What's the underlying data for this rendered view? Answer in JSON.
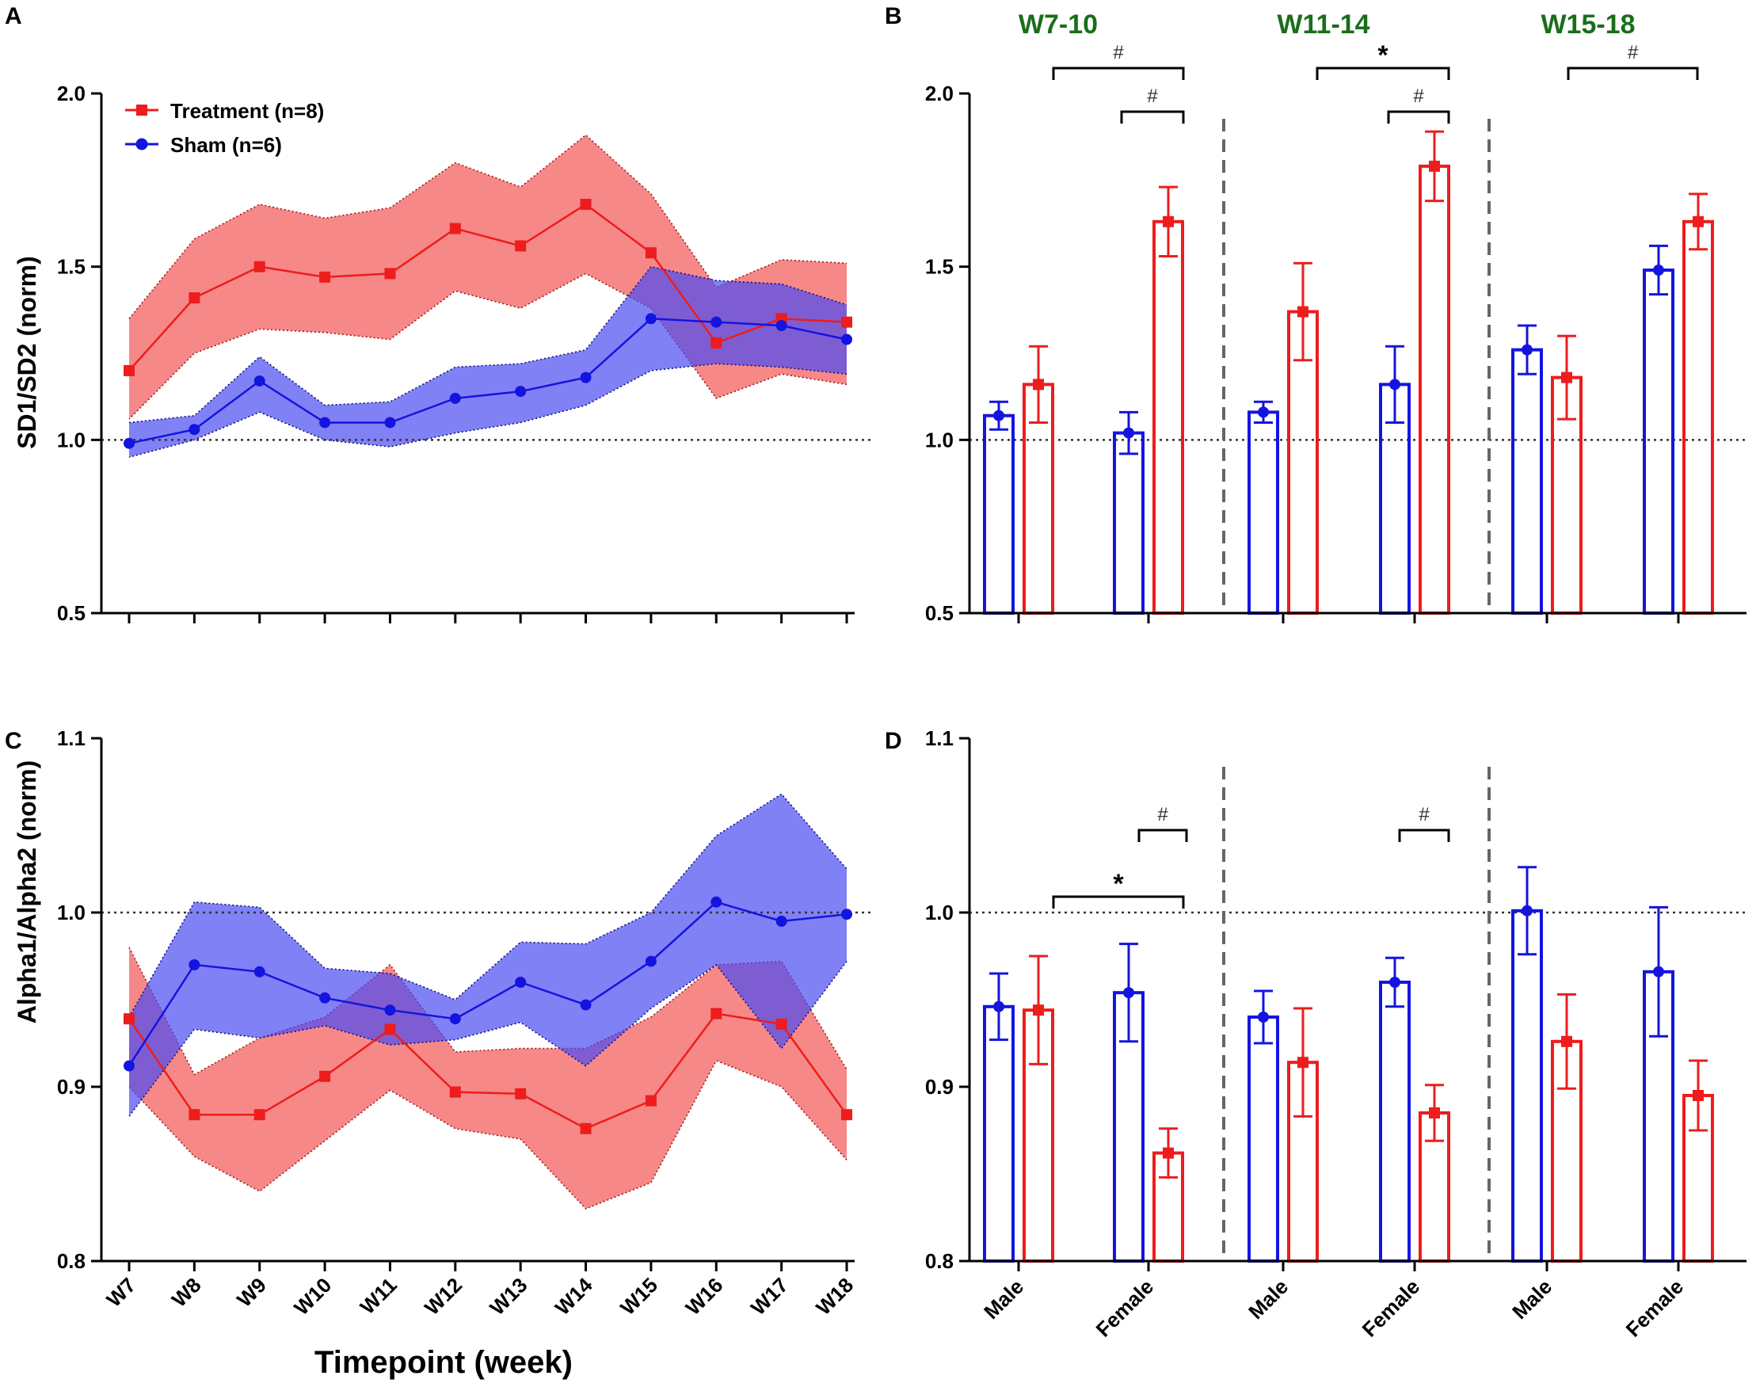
{
  "panel_letters": [
    "A",
    "B",
    "C",
    "D"
  ],
  "colors": {
    "treatment": "#ee1c1c",
    "sham": "#1414e0",
    "treatment_band": "#f25a5a",
    "sham_band": "#4b4bf2",
    "group_title": "#1a6e1a"
  },
  "x_axis_title": "Timepoint (week)",
  "chart_data": [
    {
      "id": "A",
      "type": "line",
      "ylabel": "SD1/SD2 (norm)",
      "ylim": [
        0.5,
        2.0
      ],
      "yticks": [
        "0.5",
        "1.0",
        "1.5",
        "2.0"
      ],
      "reference_line": 1.0,
      "categories": [
        "W7",
        "W8",
        "W9",
        "W10",
        "W11",
        "W12",
        "W13",
        "W14",
        "W15",
        "W16",
        "W17",
        "W18"
      ],
      "legend": [
        "Treatment (n=8)",
        "Sham (n=6)"
      ],
      "series": [
        {
          "name": "Treatment (n=8)",
          "marker": "square",
          "values": [
            1.2,
            1.41,
            1.5,
            1.47,
            1.48,
            1.61,
            1.56,
            1.68,
            1.54,
            1.28,
            1.35,
            1.34
          ],
          "lower": [
            1.06,
            1.25,
            1.32,
            1.31,
            1.29,
            1.43,
            1.38,
            1.48,
            1.38,
            1.12,
            1.19,
            1.16
          ],
          "upper": [
            1.35,
            1.58,
            1.68,
            1.64,
            1.67,
            1.8,
            1.73,
            1.88,
            1.71,
            1.44,
            1.52,
            1.51
          ]
        },
        {
          "name": "Sham (n=6)",
          "marker": "circle",
          "values": [
            0.99,
            1.03,
            1.17,
            1.05,
            1.05,
            1.12,
            1.14,
            1.18,
            1.35,
            1.34,
            1.33,
            1.29
          ],
          "lower": [
            0.95,
            1.0,
            1.08,
            1.0,
            0.98,
            1.02,
            1.05,
            1.1,
            1.2,
            1.22,
            1.21,
            1.19
          ],
          "upper": [
            1.05,
            1.07,
            1.24,
            1.1,
            1.11,
            1.21,
            1.22,
            1.26,
            1.5,
            1.46,
            1.45,
            1.39
          ]
        }
      ]
    },
    {
      "id": "B",
      "type": "bar",
      "ylim": [
        0.5,
        2.0
      ],
      "yticks": [
        "0.5",
        "1.0",
        "1.5",
        "2.0"
      ],
      "reference_line": 1.0,
      "groups": [
        {
          "title": "W7-10",
          "sham": {
            "Male": 1.07,
            "Female": 1.02
          },
          "sham_err": {
            "Male": 0.04,
            "Female": 0.06
          },
          "treatment": {
            "Male": 1.16,
            "Female": 1.63
          },
          "treatment_err": {
            "Male": 0.11,
            "Female": 0.1
          }
        },
        {
          "title": "W11-14",
          "sham": {
            "Male": 1.08,
            "Female": 1.16
          },
          "sham_err": {
            "Male": 0.03,
            "Female": 0.11
          },
          "treatment": {
            "Male": 1.37,
            "Female": 1.79
          },
          "treatment_err": {
            "Male": 0.14,
            "Female": 0.1
          }
        },
        {
          "title": "W15-18",
          "sham": {
            "Male": 1.26,
            "Female": 1.49
          },
          "sham_err": {
            "Male": 0.07,
            "Female": 0.07
          },
          "treatment": {
            "Male": 1.18,
            "Female": 1.63
          },
          "treatment_err": {
            "Male": 0.12,
            "Female": 0.08
          }
        }
      ],
      "annotations": [
        "#",
        "#",
        "*",
        "#",
        "#"
      ]
    },
    {
      "id": "C",
      "type": "line",
      "ylabel": "Alpha1/Alpha2 (norm)",
      "ylim": [
        0.8,
        1.1
      ],
      "yticks": [
        "0.8",
        "0.9",
        "1.0",
        "1.1"
      ],
      "reference_line": 1.0,
      "categories": [
        "W7",
        "W8",
        "W9",
        "W10",
        "W11",
        "W12",
        "W13",
        "W14",
        "W15",
        "W16",
        "W17",
        "W18"
      ],
      "series": [
        {
          "name": "Treatment (n=8)",
          "marker": "square",
          "values": [
            0.939,
            0.884,
            0.884,
            0.906,
            0.933,
            0.897,
            0.896,
            0.876,
            0.892,
            0.942,
            0.936,
            0.884
          ],
          "lower": [
            0.9,
            0.86,
            0.84,
            0.869,
            0.898,
            0.876,
            0.87,
            0.83,
            0.845,
            0.915,
            0.9,
            0.858
          ],
          "upper": [
            0.98,
            0.907,
            0.928,
            0.94,
            0.97,
            0.92,
            0.922,
            0.922,
            0.94,
            0.97,
            0.972,
            0.91
          ]
        },
        {
          "name": "Sham (n=6)",
          "marker": "circle",
          "values": [
            0.912,
            0.97,
            0.966,
            0.951,
            0.944,
            0.939,
            0.96,
            0.947,
            0.972,
            1.006,
            0.995,
            0.999
          ],
          "lower": [
            0.883,
            0.933,
            0.928,
            0.935,
            0.924,
            0.927,
            0.937,
            0.912,
            0.945,
            0.97,
            0.922,
            0.972
          ],
          "upper": [
            0.94,
            1.006,
            1.003,
            0.968,
            0.965,
            0.95,
            0.983,
            0.982,
            1.0,
            1.044,
            1.068,
            1.025
          ]
        }
      ]
    },
    {
      "id": "D",
      "type": "bar",
      "ylim": [
        0.8,
        1.1
      ],
      "yticks": [
        "0.8",
        "0.9",
        "1.0",
        "1.1"
      ],
      "reference_line": 1.0,
      "categories": [
        "Male",
        "Female",
        "Male",
        "Female",
        "Male",
        "Female"
      ],
      "groups": [
        {
          "sham": {
            "Male": 0.946,
            "Female": 0.954
          },
          "sham_err": {
            "Male": 0.019,
            "Female": 0.028
          },
          "treatment": {
            "Male": 0.944,
            "Female": 0.862
          },
          "treatment_err": {
            "Male": 0.031,
            "Female": 0.014
          }
        },
        {
          "sham": {
            "Male": 0.94,
            "Female": 0.96
          },
          "sham_err": {
            "Male": 0.015,
            "Female": 0.014
          },
          "treatment": {
            "Male": 0.914,
            "Female": 0.885
          },
          "treatment_err": {
            "Male": 0.031,
            "Female": 0.016
          }
        },
        {
          "sham": {
            "Male": 1.001,
            "Female": 0.966
          },
          "sham_err": {
            "Male": 0.025,
            "Female": 0.037
          },
          "treatment": {
            "Male": 0.926,
            "Female": 0.895
          },
          "treatment_err": {
            "Male": 0.027,
            "Female": 0.02
          }
        }
      ],
      "annotations": [
        "#",
        "*",
        "#"
      ]
    }
  ]
}
